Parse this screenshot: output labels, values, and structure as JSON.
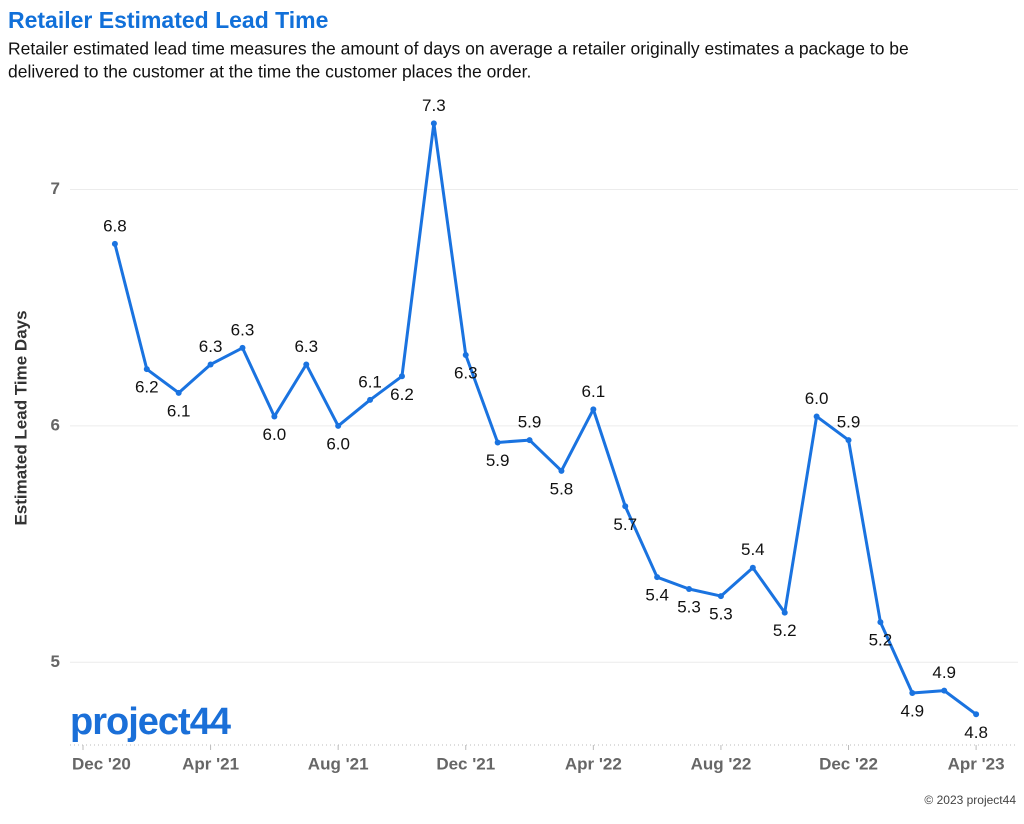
{
  "chart_data": {
    "type": "line",
    "title": "Retailer Estimated Lead Time",
    "subtitle": [
      "Retailer estimated lead time measures the amount of days on average a retailer originally estimates a package to be",
      "delivered to the customer at the time the customer places the order."
    ],
    "y_label": "Estimated Lead Time Days",
    "x": [
      "2021-01",
      "2021-02",
      "2021-03",
      "2021-04",
      "2021-05",
      "2021-06",
      "2021-07",
      "2021-08",
      "2021-09",
      "2021-10",
      "2021-11",
      "2021-12",
      "2022-01",
      "2022-02",
      "2022-03",
      "2022-04",
      "2022-05",
      "2022-06",
      "2022-07",
      "2022-08",
      "2022-09",
      "2022-10",
      "2022-11",
      "2022-12",
      "2023-01",
      "2023-02",
      "2023-03",
      "2023-04"
    ],
    "series": [
      {
        "name": "Estimated Lead Time Days",
        "color": "#1a73e0",
        "values": [
          6.77,
          6.24,
          6.14,
          6.26,
          6.33,
          6.04,
          6.26,
          6.0,
          6.11,
          6.21,
          7.28,
          6.3,
          5.93,
          5.94,
          5.81,
          6.07,
          5.66,
          5.36,
          5.31,
          5.28,
          5.4,
          5.21,
          6.04,
          5.94,
          5.17,
          4.87,
          4.88,
          4.78
        ],
        "value_labels": [
          "6.8",
          "6.2",
          "6.1",
          "6.3",
          "6.3",
          "6.0",
          "6.3",
          "6.0",
          "6.1",
          "6.2",
          "7.3",
          "6.3",
          "5.9",
          "5.9",
          "5.8",
          "6.1",
          "5.7",
          "5.4",
          "5.3",
          "5.3",
          "5.4",
          "5.2",
          "6.0",
          "5.9",
          "5.2",
          "4.9",
          "4.9",
          "4.8"
        ]
      }
    ],
    "xlim": [
      "2020-12",
      "2023-05"
    ],
    "xticks": [
      {
        "value": "2020-12",
        "label": "Dec '20"
      },
      {
        "value": "2021-04",
        "label": "Apr '21"
      },
      {
        "value": "2021-08",
        "label": "Aug '21"
      },
      {
        "value": "2021-12",
        "label": "Dec '21"
      },
      {
        "value": "2022-04",
        "label": "Apr '22"
      },
      {
        "value": "2022-08",
        "label": "Aug '22"
      },
      {
        "value": "2022-12",
        "label": "Dec '22"
      },
      {
        "value": "2023-04",
        "label": "Apr '23"
      }
    ],
    "ylim": [
      4.65,
      7.4
    ],
    "yticks": [
      5,
      6,
      7
    ],
    "grid": true
  },
  "logo": "project44",
  "footer": "© 2023 project44"
}
